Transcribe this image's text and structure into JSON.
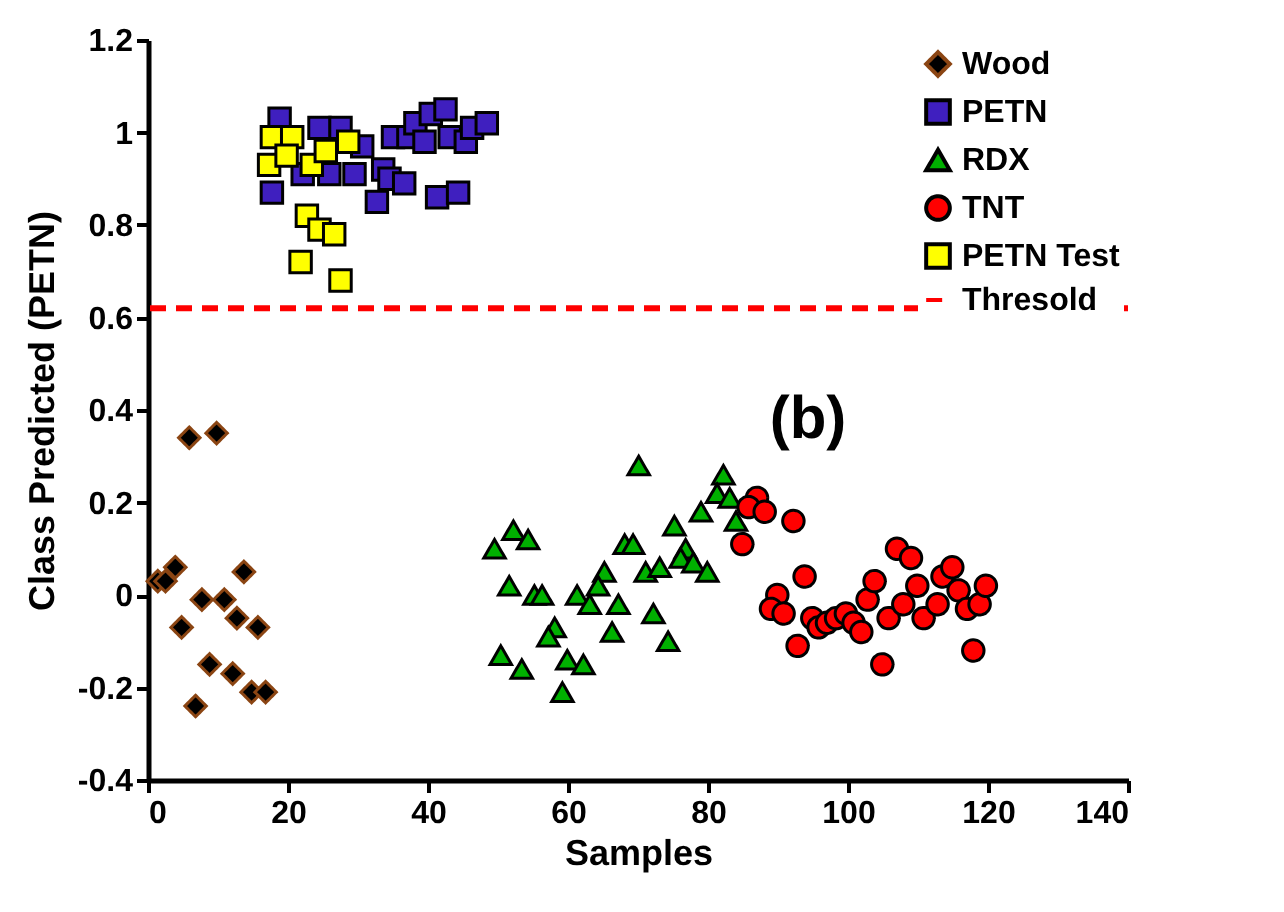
{
  "chart_data": {
    "type": "scatter",
    "xlabel": "Samples",
    "ylabel": "Class Predicted (PETN)",
    "xlim": [
      0,
      140
    ],
    "xticks": [
      0,
      20,
      40,
      60,
      80,
      100,
      120,
      140
    ],
    "ylim": [
      -0.4,
      1.2
    ],
    "yticks": [
      -0.4,
      -0.2,
      0,
      0.2,
      0.4,
      0.6,
      0.8,
      1,
      1.2
    ],
    "grid": false,
    "legend": "top right",
    "annotations": [
      "(b)"
    ],
    "ref_lines": [
      {
        "axis": "y",
        "value": 0.62,
        "label": "Thresold",
        "color": "#ff0000",
        "line_style": "dashed"
      }
    ],
    "series": [
      {
        "name": "Wood",
        "color": "#000000",
        "marker": "diamond",
        "x": [
          5.9,
          9.8,
          1.4,
          2.5,
          3.9,
          13.7,
          7.7,
          10.9,
          4.8,
          12.7,
          15.7,
          8.8,
          12.1,
          14.8,
          16.8,
          6.8
        ],
        "values": [
          0.34,
          0.35,
          0.03,
          0.03,
          0.06,
          0.05,
          -0.01,
          -0.01,
          -0.07,
          -0.05,
          -0.07,
          -0.15,
          -0.17,
          -0.21,
          -0.21,
          -0.24
        ]
      },
      {
        "name": "PETN",
        "color": "#3f1fbf",
        "marker": "square",
        "x": [
          18.8,
          24.5,
          27.5,
          30.6,
          17.7,
          22.1,
          25.9,
          29.5,
          33.6,
          34.5,
          36.6,
          32.7,
          35.0,
          37.2,
          38.2,
          40.4,
          42.5,
          39.5,
          43.1,
          45.4,
          46.3,
          48.4,
          41.3,
          44.3
        ],
        "values": [
          1.03,
          1.01,
          1.01,
          0.97,
          0.87,
          0.91,
          0.91,
          0.91,
          0.92,
          0.9,
          0.89,
          0.85,
          0.99,
          0.99,
          1.02,
          1.04,
          1.05,
          0.98,
          0.99,
          0.98,
          1.01,
          1.02,
          0.86,
          0.87
        ]
      },
      {
        "name": "RDX",
        "color": "#00b000",
        "marker": "triangle",
        "x": [
          70.1,
          82.2,
          81.3,
          83.1,
          79.0,
          75.2,
          84.0,
          52.2,
          54.3,
          49.5,
          68.1,
          69.3,
          76.8,
          76.1,
          77.9,
          79.9,
          71.1,
          73.1,
          65.2,
          64.3,
          51.6,
          55.2,
          56.3,
          61.3,
          63.1,
          67.2,
          72.2,
          58.1,
          66.3,
          74.3,
          50.4,
          53.4,
          59.9,
          62.2,
          59.2,
          57.2
        ],
        "values": [
          0.28,
          0.26,
          0.22,
          0.21,
          0.18,
          0.15,
          0.16,
          0.14,
          0.12,
          0.1,
          0.11,
          0.11,
          0.1,
          0.08,
          0.07,
          0.05,
          0.05,
          0.06,
          0.05,
          0.02,
          0.02,
          0.0,
          0.0,
          0.0,
          -0.02,
          -0.02,
          -0.04,
          -0.07,
          -0.08,
          -0.1,
          -0.13,
          -0.16,
          -0.14,
          -0.15,
          -0.21,
          -0.09
        ]
      },
      {
        "name": "TNT",
        "color": "#ff0000",
        "marker": "circle",
        "x": [
          87.0,
          85.8,
          88.1,
          92.2,
          84.9,
          93.8,
          89.9,
          89.0,
          90.8,
          92.8,
          94.9,
          95.8,
          97.0,
          98.3,
          99.7,
          100.8,
          101.9,
          102.8,
          103.8,
          104.9,
          105.8,
          107.0,
          109.0,
          107.9,
          109.9,
          110.8,
          112.8,
          113.5,
          114.9,
          115.8,
          117.0,
          118.8,
          119.7,
          117.9
        ],
        "values": [
          0.21,
          0.19,
          0.18,
          0.16,
          0.11,
          0.04,
          0.0,
          -0.03,
          -0.04,
          -0.11,
          -0.05,
          -0.07,
          -0.06,
          -0.05,
          -0.04,
          -0.06,
          -0.08,
          -0.01,
          0.03,
          -0.15,
          -0.05,
          0.1,
          0.08,
          -0.02,
          0.02,
          -0.05,
          -0.02,
          0.04,
          0.06,
          0.01,
          -0.03,
          -0.02,
          0.02,
          -0.12
        ]
      },
      {
        "name": "PETN Test",
        "color": "#ffff00",
        "marker": "square",
        "x": [
          17.7,
          20.6,
          17.3,
          19.8,
          23.4,
          25.4,
          28.6,
          22.7,
          24.5,
          26.6,
          21.8,
          27.5
        ],
        "values": [
          0.99,
          0.99,
          0.93,
          0.95,
          0.93,
          0.96,
          0.98,
          0.82,
          0.79,
          0.78,
          0.72,
          0.68
        ]
      }
    ]
  }
}
